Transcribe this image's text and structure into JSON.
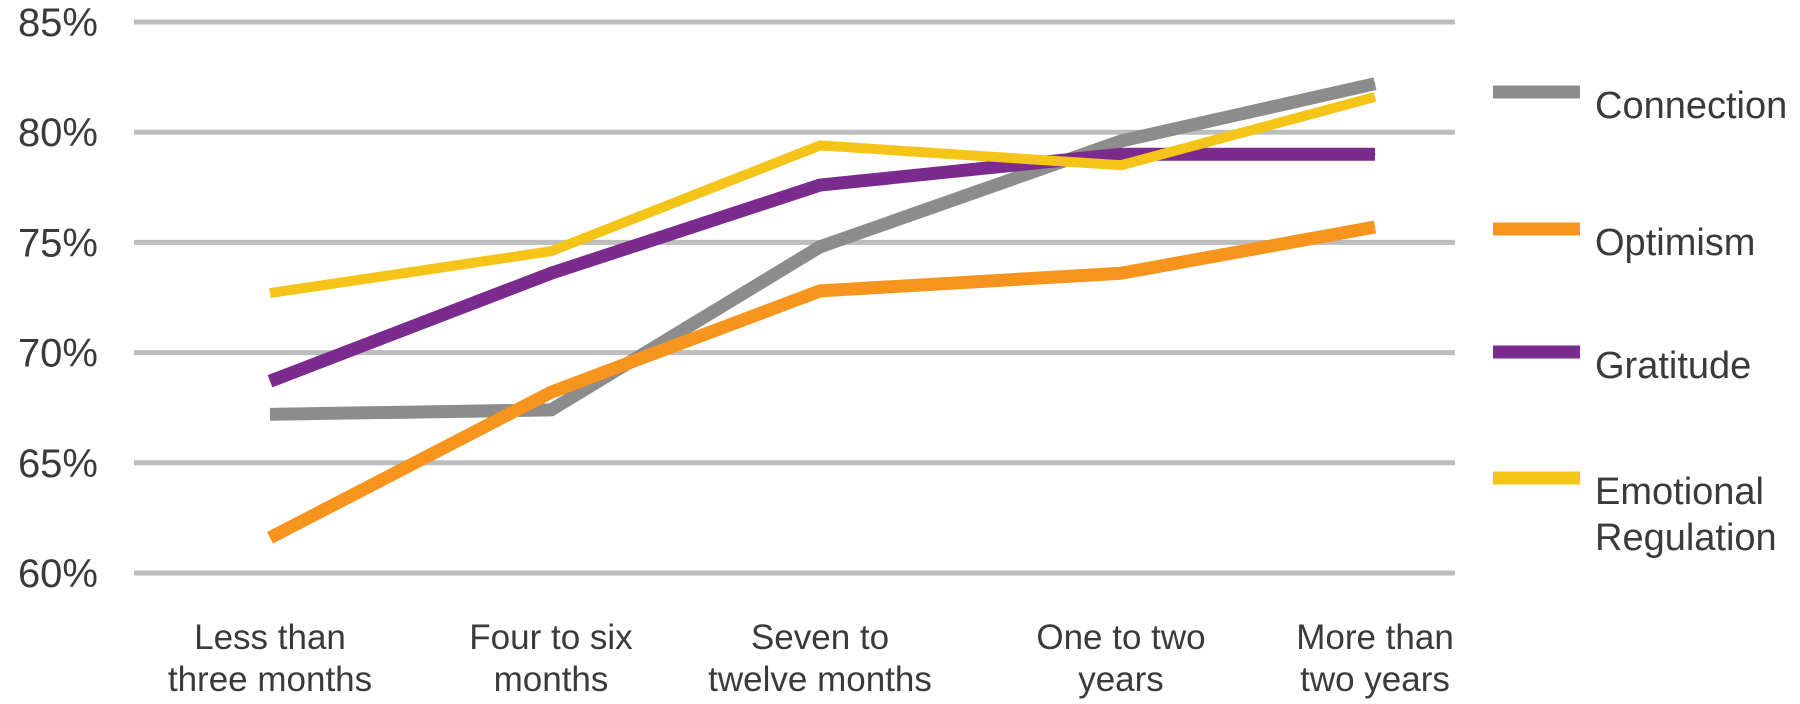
{
  "chart_data": {
    "type": "line",
    "title": "",
    "xlabel": "",
    "ylabel": "",
    "categories": [
      [
        "Less than",
        "three months"
      ],
      [
        "Four to six",
        "months"
      ],
      [
        "Seven to",
        "twelve months"
      ],
      [
        "One to two",
        "years"
      ],
      [
        "More than",
        "two years"
      ]
    ],
    "yticks": [
      "60%",
      "65%",
      "70%",
      "75%",
      "80%",
      "85%"
    ],
    "ylim": [
      60,
      85
    ],
    "grid": true,
    "legend_position": "right",
    "series": [
      {
        "name": [
          "Connection"
        ],
        "color": "#8c8c8c",
        "values": [
          67.2,
          67.4,
          74.8,
          79.6,
          82.2
        ]
      },
      {
        "name": [
          "Optimism"
        ],
        "color": "#f7941d",
        "values": [
          61.6,
          68.2,
          72.8,
          73.6,
          75.7
        ]
      },
      {
        "name": [
          "Gratitude"
        ],
        "color": "#7b2a8e",
        "values": [
          68.7,
          73.6,
          77.6,
          79.0,
          79.0
        ]
      },
      {
        "name": [
          "Emotional",
          "Regulation"
        ],
        "color": "#f4c518",
        "values": [
          72.7,
          74.6,
          79.4,
          78.5,
          81.6
        ]
      }
    ]
  }
}
